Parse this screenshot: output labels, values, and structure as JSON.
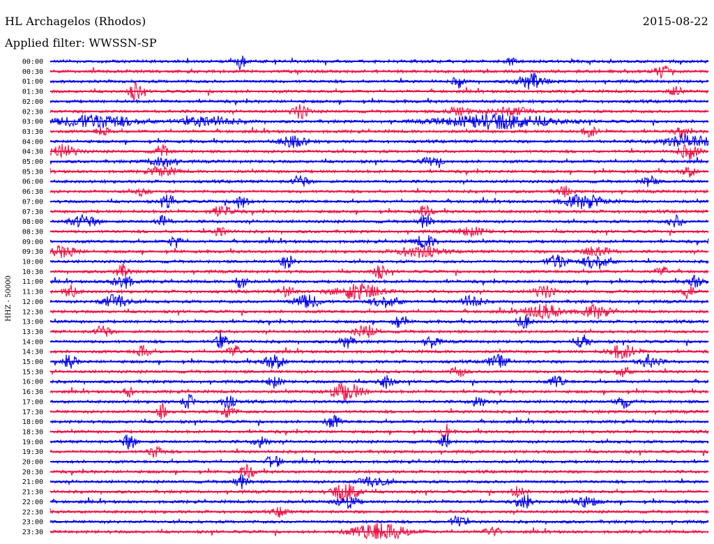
{
  "header": {
    "station": "HL Archagelos (Rhodos)",
    "date": "2015-08-22",
    "filter_label": "Applied filter:",
    "filter_value": "WWSSN-SP"
  },
  "chart_data": {
    "type": "line",
    "title": "HL Archagelos (Rhodos)",
    "ylabel": "HHZ - 50000",
    "xlabel": "",
    "rows": [
      "00:00",
      "00:30",
      "01:00",
      "01:30",
      "02:00",
      "02:30",
      "03:00",
      "03:30",
      "04:00",
      "04:30",
      "05:00",
      "05:30",
      "06:00",
      "06:30",
      "07:00",
      "07:30",
      "08:00",
      "08:30",
      "09:00",
      "09:30",
      "10:00",
      "10:30",
      "11:00",
      "11:30",
      "12:00",
      "12:30",
      "13:00",
      "13:30",
      "14:00",
      "14:30",
      "15:00",
      "15:30",
      "16:00",
      "16:30",
      "17:00",
      "17:30",
      "18:00",
      "18:30",
      "19:00",
      "19:30",
      "20:00",
      "20:30",
      "21:00",
      "21:30",
      "22:00",
      "22:30",
      "23:00",
      "23:30"
    ],
    "colors": [
      "#0000ee",
      "#ee1144"
    ],
    "grid": false,
    "events": [
      {
        "row": 0,
        "pos": 0.29,
        "amp": 12,
        "dur": 0.006
      },
      {
        "row": 0,
        "pos": 0.7,
        "amp": 6,
        "dur": 0.008
      },
      {
        "row": 1,
        "pos": 0.93,
        "amp": 9,
        "dur": 0.01
      },
      {
        "row": 2,
        "pos": 0.62,
        "amp": 8,
        "dur": 0.008
      },
      {
        "row": 2,
        "pos": 0.73,
        "amp": 11,
        "dur": 0.02
      },
      {
        "row": 3,
        "pos": 0.13,
        "amp": 12,
        "dur": 0.01
      },
      {
        "row": 3,
        "pos": 0.95,
        "amp": 8,
        "dur": 0.008
      },
      {
        "row": 5,
        "pos": 0.38,
        "amp": 10,
        "dur": 0.012
      },
      {
        "row": 5,
        "pos": 0.62,
        "amp": 5,
        "dur": 0.02
      },
      {
        "row": 5,
        "pos": 0.7,
        "amp": 6,
        "dur": 0.03
      },
      {
        "row": 6,
        "pos": 0.07,
        "amp": 9,
        "dur": 0.06
      },
      {
        "row": 6,
        "pos": 0.24,
        "amp": 7,
        "dur": 0.04
      },
      {
        "row": 6,
        "pos": 0.68,
        "amp": 10,
        "dur": 0.08
      },
      {
        "row": 7,
        "pos": 0.08,
        "amp": 7,
        "dur": 0.01
      },
      {
        "row": 7,
        "pos": 0.82,
        "amp": 8,
        "dur": 0.01
      },
      {
        "row": 7,
        "pos": 0.96,
        "amp": 7,
        "dur": 0.01
      },
      {
        "row": 8,
        "pos": 0.37,
        "amp": 8,
        "dur": 0.02
      },
      {
        "row": 8,
        "pos": 0.97,
        "amp": 8,
        "dur": 0.04
      },
      {
        "row": 9,
        "pos": 0.02,
        "amp": 9,
        "dur": 0.02
      },
      {
        "row": 9,
        "pos": 0.17,
        "amp": 8,
        "dur": 0.01
      },
      {
        "row": 9,
        "pos": 0.97,
        "amp": 10,
        "dur": 0.015
      },
      {
        "row": 10,
        "pos": 0.17,
        "amp": 7,
        "dur": 0.02
      },
      {
        "row": 10,
        "pos": 0.58,
        "amp": 6,
        "dur": 0.015
      },
      {
        "row": 11,
        "pos": 0.17,
        "amp": 7,
        "dur": 0.02
      },
      {
        "row": 11,
        "pos": 0.97,
        "amp": 7,
        "dur": 0.01
      },
      {
        "row": 12,
        "pos": 0.38,
        "amp": 9,
        "dur": 0.01
      },
      {
        "row": 12,
        "pos": 0.91,
        "amp": 8,
        "dur": 0.01
      },
      {
        "row": 13,
        "pos": 0.14,
        "amp": 6,
        "dur": 0.01
      },
      {
        "row": 13,
        "pos": 0.78,
        "amp": 7,
        "dur": 0.01
      },
      {
        "row": 14,
        "pos": 0.18,
        "amp": 10,
        "dur": 0.01
      },
      {
        "row": 14,
        "pos": 0.29,
        "amp": 10,
        "dur": 0.01
      },
      {
        "row": 14,
        "pos": 0.81,
        "amp": 9,
        "dur": 0.03
      },
      {
        "row": 15,
        "pos": 0.26,
        "amp": 8,
        "dur": 0.015
      },
      {
        "row": 15,
        "pos": 0.57,
        "amp": 8,
        "dur": 0.01
      },
      {
        "row": 16,
        "pos": 0.05,
        "amp": 8,
        "dur": 0.02
      },
      {
        "row": 16,
        "pos": 0.17,
        "amp": 8,
        "dur": 0.01
      },
      {
        "row": 16,
        "pos": 0.57,
        "amp": 10,
        "dur": 0.01
      },
      {
        "row": 16,
        "pos": 0.95,
        "amp": 9,
        "dur": 0.01
      },
      {
        "row": 17,
        "pos": 0.26,
        "amp": 7,
        "dur": 0.01
      },
      {
        "row": 17,
        "pos": 0.64,
        "amp": 6,
        "dur": 0.02
      },
      {
        "row": 18,
        "pos": 0.19,
        "amp": 10,
        "dur": 0.008
      },
      {
        "row": 18,
        "pos": 0.57,
        "amp": 9,
        "dur": 0.015
      },
      {
        "row": 19,
        "pos": 0.02,
        "amp": 8,
        "dur": 0.02
      },
      {
        "row": 19,
        "pos": 0.56,
        "amp": 8,
        "dur": 0.03
      },
      {
        "row": 19,
        "pos": 0.83,
        "amp": 8,
        "dur": 0.02
      },
      {
        "row": 20,
        "pos": 0.36,
        "amp": 9,
        "dur": 0.01
      },
      {
        "row": 20,
        "pos": 0.77,
        "amp": 10,
        "dur": 0.015
      },
      {
        "row": 20,
        "pos": 0.83,
        "amp": 10,
        "dur": 0.02
      },
      {
        "row": 21,
        "pos": 0.11,
        "amp": 9,
        "dur": 0.01
      },
      {
        "row": 21,
        "pos": 0.5,
        "amp": 9,
        "dur": 0.01
      },
      {
        "row": 21,
        "pos": 0.93,
        "amp": 7,
        "dur": 0.01
      },
      {
        "row": 22,
        "pos": 0.11,
        "amp": 10,
        "dur": 0.015
      },
      {
        "row": 22,
        "pos": 0.29,
        "amp": 12,
        "dur": 0.008
      },
      {
        "row": 22,
        "pos": 0.98,
        "amp": 9,
        "dur": 0.01
      },
      {
        "row": 23,
        "pos": 0.03,
        "amp": 9,
        "dur": 0.01
      },
      {
        "row": 23,
        "pos": 0.36,
        "amp": 9,
        "dur": 0.01
      },
      {
        "row": 23,
        "pos": 0.47,
        "amp": 12,
        "dur": 0.035
      },
      {
        "row": 23,
        "pos": 0.75,
        "amp": 9,
        "dur": 0.015
      },
      {
        "row": 23,
        "pos": 0.97,
        "amp": 12,
        "dur": 0.008
      },
      {
        "row": 24,
        "pos": 0.1,
        "amp": 10,
        "dur": 0.02
      },
      {
        "row": 24,
        "pos": 0.39,
        "amp": 9,
        "dur": 0.02
      },
      {
        "row": 24,
        "pos": 0.51,
        "amp": 8,
        "dur": 0.02
      },
      {
        "row": 24,
        "pos": 0.64,
        "amp": 9,
        "dur": 0.015
      },
      {
        "row": 25,
        "pos": 0.75,
        "amp": 10,
        "dur": 0.03
      },
      {
        "row": 25,
        "pos": 0.83,
        "amp": 9,
        "dur": 0.02
      },
      {
        "row": 26,
        "pos": 0.53,
        "amp": 9,
        "dur": 0.01
      },
      {
        "row": 26,
        "pos": 0.72,
        "amp": 9,
        "dur": 0.01
      },
      {
        "row": 27,
        "pos": 0.08,
        "amp": 9,
        "dur": 0.01
      },
      {
        "row": 27,
        "pos": 0.48,
        "amp": 9,
        "dur": 0.015
      },
      {
        "row": 28,
        "pos": 0.26,
        "amp": 10,
        "dur": 0.01
      },
      {
        "row": 28,
        "pos": 0.45,
        "amp": 9,
        "dur": 0.01
      },
      {
        "row": 28,
        "pos": 0.58,
        "amp": 9,
        "dur": 0.01
      },
      {
        "row": 28,
        "pos": 0.81,
        "amp": 9,
        "dur": 0.01
      },
      {
        "row": 29,
        "pos": 0.14,
        "amp": 9,
        "dur": 0.01
      },
      {
        "row": 29,
        "pos": 0.28,
        "amp": 9,
        "dur": 0.01
      },
      {
        "row": 29,
        "pos": 0.87,
        "amp": 10,
        "dur": 0.02
      },
      {
        "row": 30,
        "pos": 0.03,
        "amp": 9,
        "dur": 0.01
      },
      {
        "row": 30,
        "pos": 0.34,
        "amp": 10,
        "dur": 0.015
      },
      {
        "row": 30,
        "pos": 0.68,
        "amp": 9,
        "dur": 0.015
      },
      {
        "row": 30,
        "pos": 0.91,
        "amp": 9,
        "dur": 0.015
      },
      {
        "row": 31,
        "pos": 0.62,
        "amp": 8,
        "dur": 0.01
      },
      {
        "row": 31,
        "pos": 0.87,
        "amp": 8,
        "dur": 0.01
      },
      {
        "row": 32,
        "pos": 0.34,
        "amp": 8,
        "dur": 0.01
      },
      {
        "row": 32,
        "pos": 0.51,
        "amp": 10,
        "dur": 0.01
      },
      {
        "row": 32,
        "pos": 0.77,
        "amp": 9,
        "dur": 0.01
      },
      {
        "row": 33,
        "pos": 0.12,
        "amp": 8,
        "dur": 0.008
      },
      {
        "row": 33,
        "pos": 0.45,
        "amp": 12,
        "dur": 0.025
      },
      {
        "row": 34,
        "pos": 0.21,
        "amp": 9,
        "dur": 0.01
      },
      {
        "row": 34,
        "pos": 0.27,
        "amp": 9,
        "dur": 0.01
      },
      {
        "row": 34,
        "pos": 0.65,
        "amp": 9,
        "dur": 0.01
      },
      {
        "row": 34,
        "pos": 0.87,
        "amp": 9,
        "dur": 0.01
      },
      {
        "row": 35,
        "pos": 0.17,
        "amp": 12,
        "dur": 0.006
      },
      {
        "row": 35,
        "pos": 0.27,
        "amp": 9,
        "dur": 0.01
      },
      {
        "row": 36,
        "pos": 0.43,
        "amp": 10,
        "dur": 0.01
      },
      {
        "row": 37,
        "pos": 0.6,
        "amp": 12,
        "dur": 0.006
      },
      {
        "row": 38,
        "pos": 0.12,
        "amp": 10,
        "dur": 0.01
      },
      {
        "row": 38,
        "pos": 0.32,
        "amp": 9,
        "dur": 0.01
      },
      {
        "row": 38,
        "pos": 0.6,
        "amp": 14,
        "dur": 0.006
      },
      {
        "row": 39,
        "pos": 0.16,
        "amp": 9,
        "dur": 0.01
      },
      {
        "row": 40,
        "pos": 0.34,
        "amp": 10,
        "dur": 0.01
      },
      {
        "row": 41,
        "pos": 0.3,
        "amp": 10,
        "dur": 0.01
      },
      {
        "row": 42,
        "pos": 0.29,
        "amp": 10,
        "dur": 0.01
      },
      {
        "row": 42,
        "pos": 0.49,
        "amp": 8,
        "dur": 0.02
      },
      {
        "row": 43,
        "pos": 0.45,
        "amp": 13,
        "dur": 0.02
      },
      {
        "row": 43,
        "pos": 0.71,
        "amp": 8,
        "dur": 0.01
      },
      {
        "row": 44,
        "pos": 0.45,
        "amp": 10,
        "dur": 0.015
      },
      {
        "row": 44,
        "pos": 0.72,
        "amp": 10,
        "dur": 0.01
      },
      {
        "row": 44,
        "pos": 0.81,
        "amp": 7,
        "dur": 0.02
      },
      {
        "row": 45,
        "pos": 0.35,
        "amp": 7,
        "dur": 0.01
      },
      {
        "row": 46,
        "pos": 0.62,
        "amp": 9,
        "dur": 0.01
      },
      {
        "row": 47,
        "pos": 0.5,
        "amp": 13,
        "dur": 0.04
      },
      {
        "row": 47,
        "pos": 0.67,
        "amp": 7,
        "dur": 0.01
      }
    ]
  }
}
